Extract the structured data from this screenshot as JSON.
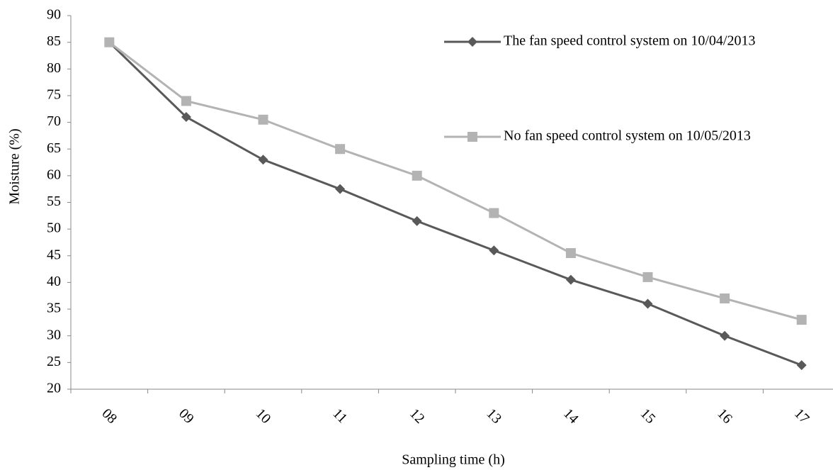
{
  "chart_data": {
    "type": "line",
    "y_label": "Moisture (%)",
    "x_label": "Sampling time (h)",
    "categories": [
      "08",
      "09",
      "10",
      "11",
      "12",
      "13",
      "14",
      "15",
      "16",
      "17"
    ],
    "series": [
      {
        "name": "The fan speed control system on 10/04/2013",
        "color": "#595959",
        "marker": "diamond",
        "values": [
          85,
          71,
          63,
          57.5,
          51.5,
          46,
          40.5,
          36,
          30,
          24.5
        ]
      },
      {
        "name": "No fan speed control system on 10/05/2013",
        "color": "#b3b3b3",
        "marker": "square",
        "values": [
          85,
          74,
          70.5,
          65,
          60,
          53,
          45.5,
          41,
          37,
          33
        ]
      }
    ],
    "ylim": [
      20,
      90
    ],
    "yticks": [
      20,
      25,
      30,
      35,
      40,
      45,
      50,
      55,
      60,
      65,
      70,
      75,
      80,
      85,
      90
    ],
    "grid": false
  }
}
